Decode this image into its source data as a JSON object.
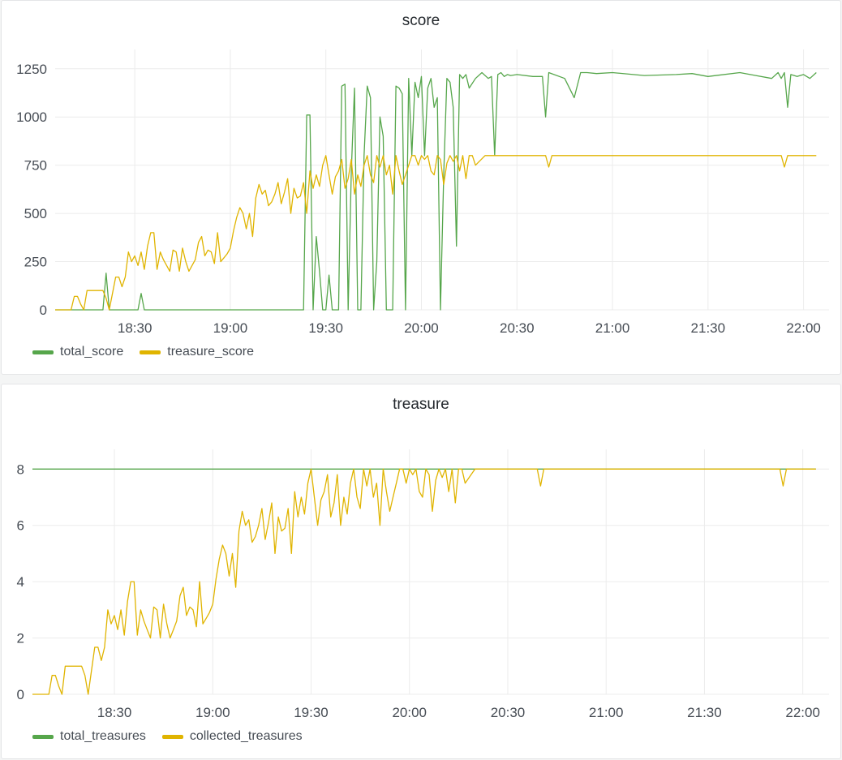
{
  "colors": {
    "total": "#56a64b",
    "treasure": "#e0b400",
    "grid": "#ececec"
  },
  "chart_data": [
    {
      "type": "line",
      "title": "score",
      "xlabel": "",
      "ylabel": "",
      "ylim": [
        0,
        1350
      ],
      "xlim": [
        "18:05",
        "22:08"
      ],
      "x_ticks": [
        "18:30",
        "19:00",
        "19:30",
        "20:00",
        "20:30",
        "21:00",
        "21:30",
        "22:00"
      ],
      "y_ticks": [
        0,
        250,
        500,
        750,
        1000,
        1250
      ],
      "grid": true,
      "legend_position": "bottom-left",
      "series": [
        {
          "name": "total_score",
          "color": "#56a64b",
          "x": [
            "18:05",
            "18:20",
            "18:21",
            "18:22",
            "18:23",
            "18:31",
            "18:32",
            "18:33",
            "19:22",
            "19:23",
            "19:24",
            "19:25",
            "19:26",
            "19:27",
            "19:28",
            "19:29",
            "19:30",
            "19:31",
            "19:32",
            "19:33",
            "19:34",
            "19:35",
            "19:36",
            "19:37",
            "19:38",
            "19:39",
            "19:40",
            "19:41",
            "19:42",
            "19:43",
            "19:44",
            "19:45",
            "19:46",
            "19:47",
            "19:48",
            "19:49",
            "19:50",
            "19:51",
            "19:52",
            "19:53",
            "19:54",
            "19:55",
            "19:56",
            "19:57",
            "19:58",
            "19:59",
            "20:00",
            "20:01",
            "20:02",
            "20:03",
            "20:04",
            "20:05",
            "20:06",
            "20:07",
            "20:08",
            "20:09",
            "20:10",
            "20:11",
            "20:12",
            "20:13",
            "20:14",
            "20:15",
            "20:17",
            "20:19",
            "20:21",
            "20:22",
            "20:23",
            "20:24",
            "20:25",
            "20:26",
            "20:27",
            "20:28",
            "20:30",
            "20:35",
            "20:38",
            "20:39",
            "20:40",
            "20:45",
            "20:48",
            "20:50",
            "20:52",
            "20:55",
            "21:00",
            "21:10",
            "21:20",
            "21:25",
            "21:30",
            "21:40",
            "21:45",
            "21:50",
            "21:52",
            "21:53",
            "21:54",
            "21:55",
            "21:56",
            "21:58",
            "22:00",
            "22:02",
            "22:04"
          ],
          "values": [
            0,
            0,
            190,
            0,
            0,
            0,
            85,
            0,
            0,
            0,
            1010,
            1010,
            0,
            380,
            200,
            0,
            0,
            180,
            0,
            0,
            0,
            1160,
            1170,
            0,
            720,
            1150,
            0,
            0,
            800,
            1160,
            1100,
            0,
            250,
            1000,
            900,
            0,
            0,
            0,
            1160,
            1150,
            1120,
            0,
            1200,
            800,
            1180,
            1100,
            1210,
            800,
            1150,
            1200,
            1050,
            1100,
            0,
            700,
            1200,
            1180,
            1050,
            330,
            1220,
            1200,
            1220,
            1150,
            1200,
            1230,
            1200,
            1210,
            800,
            1220,
            1230,
            1210,
            1220,
            1215,
            1220,
            1210,
            1210,
            1000,
            1230,
            1200,
            1100,
            1230,
            1230,
            1225,
            1230,
            1215,
            1220,
            1225,
            1210,
            1230,
            1215,
            1200,
            1230,
            1200,
            1230,
            1050,
            1220,
            1210,
            1220,
            1200,
            1230
          ]
        },
        {
          "name": "treasure_score",
          "color": "#e0b400",
          "x": [
            "18:05",
            "18:10",
            "18:11",
            "18:12",
            "18:13",
            "18:14",
            "18:15",
            "18:20",
            "18:21",
            "18:22",
            "18:24",
            "18:25",
            "18:26",
            "18:27",
            "18:28",
            "18:29",
            "18:30",
            "18:31",
            "18:32",
            "18:33",
            "18:34",
            "18:35",
            "18:36",
            "18:37",
            "18:38",
            "18:39",
            "18:40",
            "18:41",
            "18:42",
            "18:43",
            "18:44",
            "18:45",
            "18:46",
            "18:47",
            "18:48",
            "18:49",
            "18:50",
            "18:51",
            "18:52",
            "18:53",
            "18:54",
            "18:55",
            "18:56",
            "18:57",
            "18:58",
            "18:59",
            "19:00",
            "19:01",
            "19:02",
            "19:03",
            "19:04",
            "19:05",
            "19:06",
            "19:07",
            "19:08",
            "19:09",
            "19:10",
            "19:11",
            "19:12",
            "19:13",
            "19:14",
            "19:15",
            "19:16",
            "19:17",
            "19:18",
            "19:19",
            "19:20",
            "19:21",
            "19:22",
            "19:23",
            "19:24",
            "19:25",
            "19:26",
            "19:27",
            "19:28",
            "19:29",
            "19:30",
            "19:31",
            "19:32",
            "19:33",
            "19:34",
            "19:35",
            "19:36",
            "19:37",
            "19:38",
            "19:39",
            "19:40",
            "19:41",
            "19:42",
            "19:43",
            "19:44",
            "19:45",
            "19:46",
            "19:47",
            "19:48",
            "19:49",
            "19:50",
            "19:51",
            "19:52",
            "19:53",
            "19:54",
            "19:55",
            "19:56",
            "19:57",
            "19:58",
            "19:59",
            "20:00",
            "20:01",
            "20:02",
            "20:03",
            "20:04",
            "20:05",
            "20:06",
            "20:07",
            "20:08",
            "20:09",
            "20:10",
            "20:11",
            "20:12",
            "20:13",
            "20:14",
            "20:15",
            "20:16",
            "20:17",
            "20:20",
            "20:25",
            "20:30",
            "20:38",
            "20:39",
            "20:40",
            "20:41",
            "21:00",
            "21:30",
            "21:53",
            "21:54",
            "21:55",
            "22:04"
          ],
          "values": [
            0,
            0,
            70,
            70,
            30,
            0,
            100,
            100,
            60,
            0,
            170,
            170,
            120,
            170,
            300,
            250,
            280,
            230,
            300,
            210,
            330,
            400,
            400,
            210,
            300,
            260,
            230,
            200,
            310,
            300,
            200,
            320,
            250,
            200,
            230,
            260,
            350,
            380,
            280,
            310,
            300,
            240,
            400,
            250,
            270,
            290,
            320,
            410,
            480,
            530,
            500,
            420,
            500,
            380,
            580,
            650,
            600,
            620,
            540,
            560,
            600,
            660,
            550,
            610,
            680,
            500,
            630,
            580,
            590,
            660,
            500,
            720,
            630,
            700,
            640,
            750,
            800,
            700,
            600,
            690,
            720,
            780,
            630,
            680,
            780,
            600,
            700,
            640,
            750,
            800,
            700,
            660,
            800,
            740,
            800,
            700,
            750,
            600,
            800,
            720,
            650,
            700,
            750,
            800,
            800,
            750,
            800,
            780,
            800,
            720,
            700,
            800,
            780,
            650,
            760,
            800,
            770,
            800,
            720,
            800,
            680,
            800,
            800,
            750,
            800,
            800,
            800,
            800,
            800,
            740,
            800,
            800,
            800,
            800,
            740,
            800,
            800
          ]
        }
      ]
    },
    {
      "type": "line",
      "title": "treasure",
      "xlabel": "",
      "ylabel": "",
      "ylim": [
        0,
        8.7
      ],
      "xlim": [
        "18:05",
        "22:08"
      ],
      "x_ticks": [
        "18:30",
        "19:00",
        "19:30",
        "20:00",
        "20:30",
        "21:00",
        "21:30",
        "22:00"
      ],
      "y_ticks": [
        0,
        2,
        4,
        6,
        8
      ],
      "grid": true,
      "legend_position": "bottom-left",
      "series": [
        {
          "name": "total_treasures",
          "color": "#56a64b",
          "x": [
            "18:05",
            "22:04"
          ],
          "values": [
            8,
            8
          ]
        },
        {
          "name": "collected_treasures",
          "color": "#e0b400",
          "x": [
            "18:05",
            "18:10",
            "18:11",
            "18:12",
            "18:13",
            "18:14",
            "18:15",
            "18:20",
            "18:21",
            "18:22",
            "18:24",
            "18:25",
            "18:26",
            "18:27",
            "18:28",
            "18:29",
            "18:30",
            "18:31",
            "18:32",
            "18:33",
            "18:34",
            "18:35",
            "18:36",
            "18:37",
            "18:38",
            "18:39",
            "18:40",
            "18:41",
            "18:42",
            "18:43",
            "18:44",
            "18:45",
            "18:46",
            "18:47",
            "18:48",
            "18:49",
            "18:50",
            "18:51",
            "18:52",
            "18:53",
            "18:54",
            "18:55",
            "18:56",
            "18:57",
            "18:58",
            "18:59",
            "19:00",
            "19:01",
            "19:02",
            "19:03",
            "19:04",
            "19:05",
            "19:06",
            "19:07",
            "19:08",
            "19:09",
            "19:10",
            "19:11",
            "19:12",
            "19:13",
            "19:14",
            "19:15",
            "19:16",
            "19:17",
            "19:18",
            "19:19",
            "19:20",
            "19:21",
            "19:22",
            "19:23",
            "19:24",
            "19:25",
            "19:26",
            "19:27",
            "19:28",
            "19:29",
            "19:30",
            "19:31",
            "19:32",
            "19:33",
            "19:34",
            "19:35",
            "19:36",
            "19:37",
            "19:38",
            "19:39",
            "19:40",
            "19:41",
            "19:42",
            "19:43",
            "19:44",
            "19:45",
            "19:46",
            "19:47",
            "19:48",
            "19:49",
            "19:50",
            "19:51",
            "19:52",
            "19:53",
            "19:54",
            "19:55",
            "19:56",
            "19:57",
            "19:58",
            "19:59",
            "20:00",
            "20:01",
            "20:02",
            "20:03",
            "20:04",
            "20:05",
            "20:06",
            "20:07",
            "20:08",
            "20:09",
            "20:10",
            "20:11",
            "20:12",
            "20:13",
            "20:14",
            "20:15",
            "20:16",
            "20:17",
            "20:20",
            "20:25",
            "20:30",
            "20:38",
            "20:39",
            "20:40",
            "20:41",
            "21:00",
            "21:30",
            "21:53",
            "21:54",
            "21:55",
            "22:04"
          ],
          "values": [
            0,
            0,
            0.67,
            0.67,
            0.3,
            0,
            1,
            1,
            0.67,
            0,
            1.67,
            1.67,
            1.2,
            1.67,
            3,
            2.5,
            2.8,
            2.3,
            3,
            2.1,
            3.3,
            4,
            4,
            2.1,
            3,
            2.6,
            2.3,
            2,
            3.1,
            3,
            2,
            3.2,
            2.5,
            2,
            2.3,
            2.6,
            3.5,
            3.8,
            2.8,
            3.1,
            3,
            2.4,
            4,
            2.5,
            2.7,
            2.9,
            3.2,
            4.1,
            4.8,
            5.3,
            5,
            4.2,
            5,
            3.8,
            5.8,
            6.5,
            6,
            6.2,
            5.4,
            5.6,
            6,
            6.6,
            5.5,
            6.1,
            6.8,
            5,
            6.3,
            5.8,
            5.9,
            6.6,
            5,
            7.2,
            6.3,
            7,
            6.4,
            7.5,
            8,
            7,
            6,
            6.9,
            7.2,
            7.8,
            6.3,
            6.8,
            7.8,
            6,
            7,
            6.4,
            7.5,
            8,
            7,
            6.6,
            8,
            7.4,
            8,
            7,
            7.5,
            6,
            8,
            7.2,
            6.5,
            7,
            7.5,
            8,
            8,
            7.5,
            8,
            7.8,
            8,
            7.2,
            7,
            8,
            7.8,
            6.5,
            7.6,
            8,
            7.7,
            8,
            7.2,
            8,
            6.8,
            8,
            8,
            7.5,
            8,
            8,
            8,
            8,
            8,
            7.4,
            8,
            8,
            8,
            8,
            7.4,
            8,
            8
          ]
        }
      ]
    }
  ]
}
